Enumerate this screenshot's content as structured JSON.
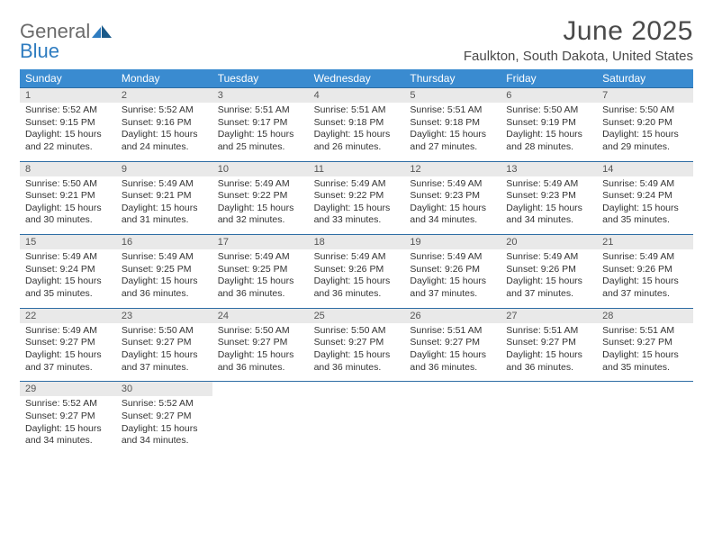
{
  "logo": {
    "word1": "General",
    "word2": "Blue",
    "brand_color": "#2e7cc0"
  },
  "title": {
    "month": "June 2025",
    "location": "Faulkton, South Dakota, United States"
  },
  "dow": [
    "Sunday",
    "Monday",
    "Tuesday",
    "Wednesday",
    "Thursday",
    "Friday",
    "Saturday"
  ],
  "colors": {
    "header_bg": "#3a8bd0",
    "daynum_bg": "#e9e9e9",
    "rule": "#2e6da4",
    "text": "#333333"
  },
  "weeks": [
    [
      {
        "n": "1",
        "sunrise": "5:52 AM",
        "sunset": "9:15 PM",
        "daylight": "15 hours and 22 minutes."
      },
      {
        "n": "2",
        "sunrise": "5:52 AM",
        "sunset": "9:16 PM",
        "daylight": "15 hours and 24 minutes."
      },
      {
        "n": "3",
        "sunrise": "5:51 AM",
        "sunset": "9:17 PM",
        "daylight": "15 hours and 25 minutes."
      },
      {
        "n": "4",
        "sunrise": "5:51 AM",
        "sunset": "9:18 PM",
        "daylight": "15 hours and 26 minutes."
      },
      {
        "n": "5",
        "sunrise": "5:51 AM",
        "sunset": "9:18 PM",
        "daylight": "15 hours and 27 minutes."
      },
      {
        "n": "6",
        "sunrise": "5:50 AM",
        "sunset": "9:19 PM",
        "daylight": "15 hours and 28 minutes."
      },
      {
        "n": "7",
        "sunrise": "5:50 AM",
        "sunset": "9:20 PM",
        "daylight": "15 hours and 29 minutes."
      }
    ],
    [
      {
        "n": "8",
        "sunrise": "5:50 AM",
        "sunset": "9:21 PM",
        "daylight": "15 hours and 30 minutes."
      },
      {
        "n": "9",
        "sunrise": "5:49 AM",
        "sunset": "9:21 PM",
        "daylight": "15 hours and 31 minutes."
      },
      {
        "n": "10",
        "sunrise": "5:49 AM",
        "sunset": "9:22 PM",
        "daylight": "15 hours and 32 minutes."
      },
      {
        "n": "11",
        "sunrise": "5:49 AM",
        "sunset": "9:22 PM",
        "daylight": "15 hours and 33 minutes."
      },
      {
        "n": "12",
        "sunrise": "5:49 AM",
        "sunset": "9:23 PM",
        "daylight": "15 hours and 34 minutes."
      },
      {
        "n": "13",
        "sunrise": "5:49 AM",
        "sunset": "9:23 PM",
        "daylight": "15 hours and 34 minutes."
      },
      {
        "n": "14",
        "sunrise": "5:49 AM",
        "sunset": "9:24 PM",
        "daylight": "15 hours and 35 minutes."
      }
    ],
    [
      {
        "n": "15",
        "sunrise": "5:49 AM",
        "sunset": "9:24 PM",
        "daylight": "15 hours and 35 minutes."
      },
      {
        "n": "16",
        "sunrise": "5:49 AM",
        "sunset": "9:25 PM",
        "daylight": "15 hours and 36 minutes."
      },
      {
        "n": "17",
        "sunrise": "5:49 AM",
        "sunset": "9:25 PM",
        "daylight": "15 hours and 36 minutes."
      },
      {
        "n": "18",
        "sunrise": "5:49 AM",
        "sunset": "9:26 PM",
        "daylight": "15 hours and 36 minutes."
      },
      {
        "n": "19",
        "sunrise": "5:49 AM",
        "sunset": "9:26 PM",
        "daylight": "15 hours and 37 minutes."
      },
      {
        "n": "20",
        "sunrise": "5:49 AM",
        "sunset": "9:26 PM",
        "daylight": "15 hours and 37 minutes."
      },
      {
        "n": "21",
        "sunrise": "5:49 AM",
        "sunset": "9:26 PM",
        "daylight": "15 hours and 37 minutes."
      }
    ],
    [
      {
        "n": "22",
        "sunrise": "5:49 AM",
        "sunset": "9:27 PM",
        "daylight": "15 hours and 37 minutes."
      },
      {
        "n": "23",
        "sunrise": "5:50 AM",
        "sunset": "9:27 PM",
        "daylight": "15 hours and 37 minutes."
      },
      {
        "n": "24",
        "sunrise": "5:50 AM",
        "sunset": "9:27 PM",
        "daylight": "15 hours and 36 minutes."
      },
      {
        "n": "25",
        "sunrise": "5:50 AM",
        "sunset": "9:27 PM",
        "daylight": "15 hours and 36 minutes."
      },
      {
        "n": "26",
        "sunrise": "5:51 AM",
        "sunset": "9:27 PM",
        "daylight": "15 hours and 36 minutes."
      },
      {
        "n": "27",
        "sunrise": "5:51 AM",
        "sunset": "9:27 PM",
        "daylight": "15 hours and 36 minutes."
      },
      {
        "n": "28",
        "sunrise": "5:51 AM",
        "sunset": "9:27 PM",
        "daylight": "15 hours and 35 minutes."
      }
    ],
    [
      {
        "n": "29",
        "sunrise": "5:52 AM",
        "sunset": "9:27 PM",
        "daylight": "15 hours and 34 minutes."
      },
      {
        "n": "30",
        "sunrise": "5:52 AM",
        "sunset": "9:27 PM",
        "daylight": "15 hours and 34 minutes."
      },
      null,
      null,
      null,
      null,
      null
    ]
  ],
  "labels": {
    "sunrise": "Sunrise:",
    "sunset": "Sunset:",
    "daylight": "Daylight:"
  }
}
